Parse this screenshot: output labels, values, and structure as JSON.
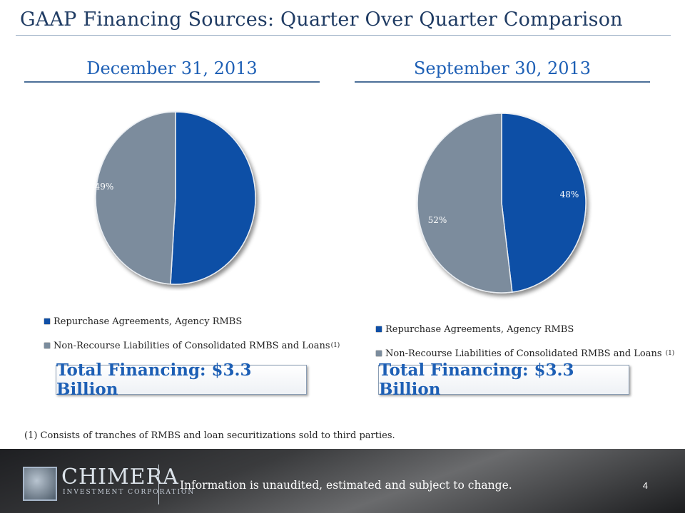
{
  "title": "GAAP Financing Sources: Quarter Over Quarter Comparison",
  "colors": {
    "repo": "#0f4fa6",
    "nonrecourse": "#7b8c9d",
    "title": "#1f3b63",
    "accent": "#1d5fb5"
  },
  "chart_data": [
    {
      "type": "pie",
      "title": "December 31, 2013",
      "categories": [
        "Repurchase Agreements, Agency RMBS",
        "Non-Recourse Liabilities of Consolidated RMBS and Loans"
      ],
      "values": [
        51,
        49
      ],
      "labels": [
        "51%",
        "49%"
      ],
      "legend": {
        "items": [
          "Repurchase Agreements, Agency RMBS",
          "Non-Recourse Liabilities of Consolidated RMBS and Loans"
        ],
        "note": "(1)",
        "placement": "bottom"
      },
      "total": "Total Financing: $3.3 Billion"
    },
    {
      "type": "pie",
      "title": "September 30, 2013",
      "categories": [
        "Repurchase Agreements, Agency RMBS",
        "Non-Recourse Liabilities of Consolidated RMBS and Loans"
      ],
      "values": [
        48,
        52
      ],
      "labels": [
        "48%",
        "52%"
      ],
      "legend": {
        "items": [
          "Repurchase Agreements, Agency RMBS",
          "Non-Recourse Liabilities of Consolidated RMBS and Loans"
        ],
        "note": "(1)",
        "placement": "bottom"
      },
      "total": "Total Financing: $3.3 Billion"
    }
  ],
  "footnote": "(1)  Consists of tranches of RMBS and loan securitizations sold to third parties.",
  "footer": {
    "logo_name": "CHIMERA",
    "logo_corp": "INVESTMENT CORPORATION",
    "disclaimer": "Information is unaudited, estimated and subject to change.",
    "page_number": "4"
  }
}
